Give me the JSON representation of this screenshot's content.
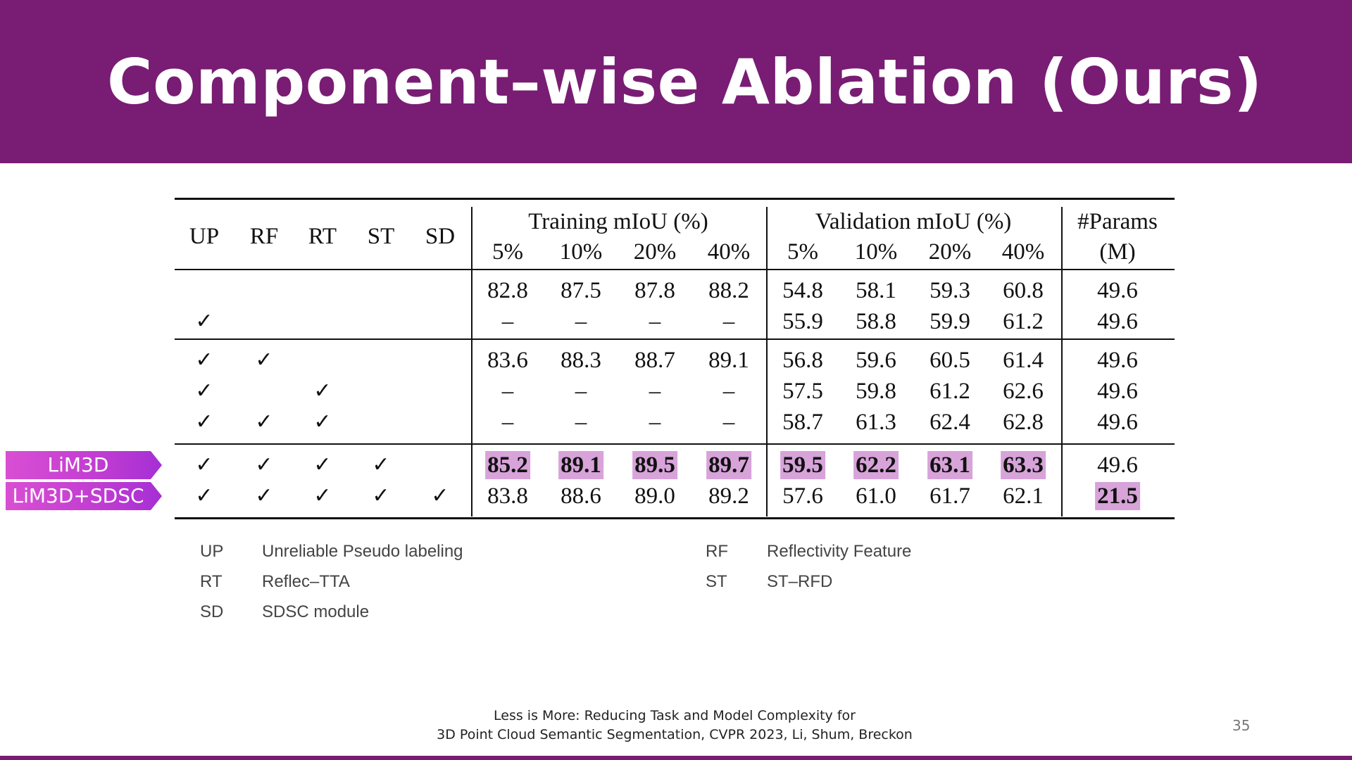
{
  "slide": {
    "title": "Component–wise Ablation (Ours)",
    "page_number": "35",
    "citation": {
      "line1": "Less is More: Reducing Task and Model Complexity for",
      "line2": "3D Point Cloud Semantic Segmentation, CVPR 2023, Li, Shum, Breckon"
    },
    "colors": {
      "banner": "#781d73",
      "highlight": "#d7a3d9",
      "tag": "#c03dd2"
    }
  },
  "table": {
    "component_headers": [
      "UP",
      "RF",
      "RT",
      "ST",
      "SD"
    ],
    "training_group": "Training mIoU (%)",
    "validation_group": "Validation mIoU (%)",
    "params_header": [
      "#Params",
      "(M)"
    ],
    "percent_headers": [
      "5%",
      "10%",
      "20%",
      "40%"
    ],
    "check_mark": "✓",
    "rows": [
      {
        "checks": [
          false,
          false,
          false,
          false,
          false
        ],
        "train": [
          "82.8",
          "87.5",
          "87.8",
          "88.2"
        ],
        "val": [
          "54.8",
          "58.1",
          "59.3",
          "60.8"
        ],
        "params": "49.6",
        "highlight_metrics": false,
        "highlight_params": false
      },
      {
        "checks": [
          true,
          false,
          false,
          false,
          false
        ],
        "train": [
          "–",
          "–",
          "–",
          "–"
        ],
        "val": [
          "55.9",
          "58.8",
          "59.9",
          "61.2"
        ],
        "params": "49.6",
        "highlight_metrics": false,
        "highlight_params": false
      },
      {
        "checks": [
          true,
          true,
          false,
          false,
          false
        ],
        "train": [
          "83.6",
          "88.3",
          "88.7",
          "89.1"
        ],
        "val": [
          "56.8",
          "59.6",
          "60.5",
          "61.4"
        ],
        "params": "49.6",
        "highlight_metrics": false,
        "highlight_params": false
      },
      {
        "checks": [
          true,
          false,
          true,
          false,
          false
        ],
        "train": [
          "–",
          "–",
          "–",
          "–"
        ],
        "val": [
          "57.5",
          "59.8",
          "61.2",
          "62.6"
        ],
        "params": "49.6",
        "highlight_metrics": false,
        "highlight_params": false
      },
      {
        "checks": [
          true,
          true,
          true,
          false,
          false
        ],
        "train": [
          "–",
          "–",
          "–",
          "–"
        ],
        "val": [
          "58.7",
          "61.3",
          "62.4",
          "62.8"
        ],
        "params": "49.6",
        "highlight_metrics": false,
        "highlight_params": false
      },
      {
        "tag": "LiM3D",
        "checks": [
          true,
          true,
          true,
          true,
          false
        ],
        "train": [
          "85.2",
          "89.1",
          "89.5",
          "89.7"
        ],
        "val": [
          "59.5",
          "62.2",
          "63.1",
          "63.3"
        ],
        "params": "49.6",
        "highlight_metrics": true,
        "highlight_params": false
      },
      {
        "tag": "LiM3D+SDSC",
        "checks": [
          true,
          true,
          true,
          true,
          true
        ],
        "train": [
          "83.8",
          "88.6",
          "89.0",
          "89.2"
        ],
        "val": [
          "57.6",
          "61.0",
          "61.7",
          "62.1"
        ],
        "params": "21.5",
        "highlight_metrics": false,
        "highlight_params": true
      }
    ]
  },
  "legend": [
    {
      "abbr": "UP",
      "text": "Unreliable Pseudo labeling"
    },
    {
      "abbr": "RF",
      "text": "Reflectivity Feature"
    },
    {
      "abbr": "RT",
      "text": "Reflec–TTA"
    },
    {
      "abbr": "ST",
      "text": "ST–RFD"
    },
    {
      "abbr": "SD",
      "text": "SDSC module"
    }
  ]
}
